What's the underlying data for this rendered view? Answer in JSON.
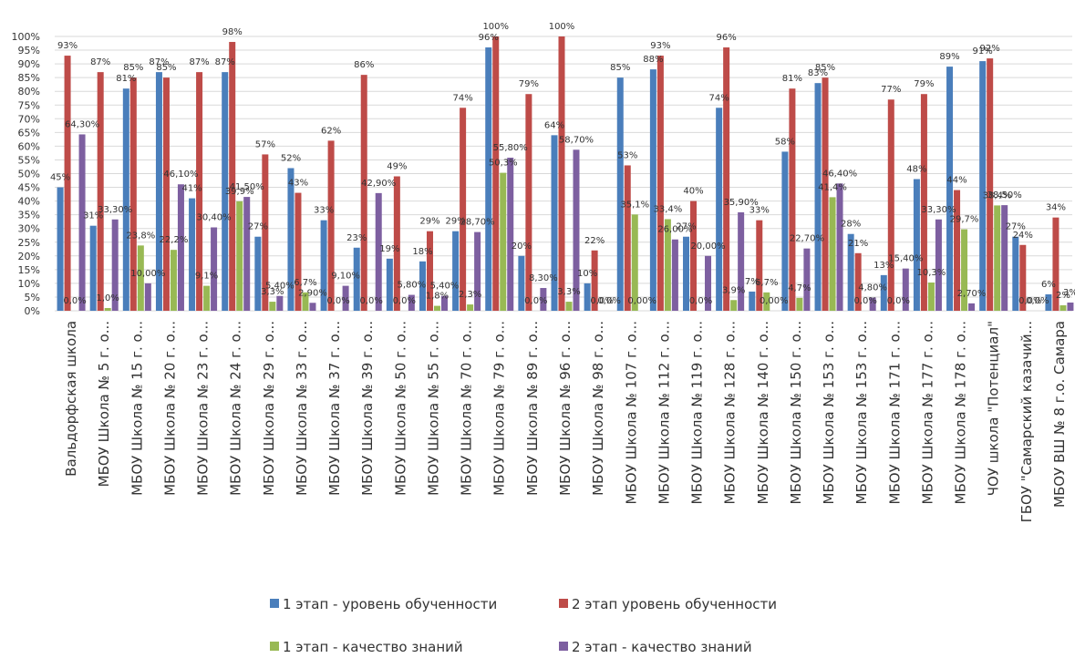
{
  "chart_data": {
    "type": "bar",
    "ylim": [
      0,
      100
    ],
    "ytick_step": 5,
    "grid": true,
    "legend_position": "bottom",
    "categories": [
      "Вальдорфская школа",
      "МБОУ Школа № 5 г. о...",
      "МБОУ Школа № 15 г. о...",
      "МБОУ Школа № 20 г. о...",
      "МБОУ Школа № 23 г. о...",
      "МБОУ Школа № 24 г. о...",
      "МБОУ Школа № 29 г. о...",
      "МБОУ Школа № 33 г. о...",
      "МБОУ Школа № 37 г. о...",
      "МБОУ Школа № 39 г. о...",
      "МБОУ Школа № 50 г. о...",
      "МБОУ Школа № 55 г. о...",
      "МБОУ Школа № 70 г. о...",
      "МБОУ Школа № 79 г. о...",
      "МБОУ Школа № 89 г. о...",
      "МБОУ Школа № 96 г. о...",
      "МБОУ Школа № 98 г. о...",
      "МБОУ Школа № 107 г. о...",
      "МБОУ Школа № 112 г. о...",
      "МБОУ Школа № 119 г. о...",
      "МБОУ Школа № 128 г. о...",
      "МБОУ Школа № 140 г. о...",
      "МБОУ Школа № 150 г. о...",
      "МБОУ Школа № 153 г. о...",
      "МБОУ Школа № 153 г. о...",
      "МБОУ Школа № 171 г. о...",
      "МБОУ Школа № 177 г. о...",
      "МБОУ Школа № 178 г. о...",
      "ЧОУ школа \"Потенциал\"",
      "ГБОУ \"Самарский казачий...",
      "МБОУ ВШ № 8 г.о. Самара"
    ],
    "series": [
      {
        "name": "1 этап - уровень обученности",
        "color": "#4a7ebb",
        "values": [
          45,
          31,
          81,
          87,
          41,
          87,
          27,
          52,
          33,
          23,
          19,
          18,
          29,
          96,
          20,
          64,
          10,
          85,
          88,
          27,
          74,
          7,
          58,
          83,
          28,
          13,
          48,
          89,
          91,
          27,
          6
        ],
        "labels": [
          "45%",
          "31%",
          "81%",
          "87%",
          "41%",
          "87%",
          "27%",
          "52%",
          "33%",
          "23%",
          "19%",
          "18%",
          "29%",
          "96%",
          "20%",
          "64%",
          "10%",
          "85%",
          "88%",
          "27%",
          "74%",
          "7%",
          "58%",
          "83%",
          "28%",
          "13%",
          "48%",
          "89%",
          "91%",
          "27%",
          "6%"
        ]
      },
      {
        "name": "2 этап уровень обученности",
        "color": "#be4b48",
        "values": [
          93,
          87,
          85,
          85,
          87,
          98,
          57,
          43,
          62,
          86,
          49,
          29,
          74,
          100,
          79,
          100,
          22,
          53,
          93,
          40,
          96,
          33,
          81,
          85,
          21,
          77,
          79,
          44,
          92,
          24,
          34
        ],
        "labels": [
          "93%",
          "87%",
          "85%",
          "85%",
          "87%",
          "98%",
          "57%",
          "43%",
          "62%",
          "86%",
          "49%",
          "29%",
          "74%",
          "100%",
          "79%",
          "100%",
          "22%",
          "53%",
          "93%",
          "40%",
          "96%",
          "33%",
          "81%",
          "85%",
          "21%",
          "77%",
          "79%",
          "44%",
          "92%",
          "24%",
          "34%"
        ]
      },
      {
        "name": "1 этап - качество знаний",
        "color": "#98b954",
        "values": [
          0,
          1,
          23.8,
          22.2,
          9.1,
          39.9,
          3.3,
          6.7,
          0,
          0,
          0,
          1.8,
          2.3,
          50.3,
          0,
          3.3,
          0,
          35.1,
          33.4,
          0,
          3.9,
          6.7,
          4.7,
          41.4,
          0,
          0,
          10.3,
          29.7,
          38.4,
          0,
          2
        ],
        "labels": [
          "0,0%",
          "1,0%",
          "23,8%",
          "22,2%",
          "9,1%",
          "39,9%",
          "3,3%",
          "6,7%",
          "0,0%",
          "0,0%",
          "0,0%",
          "1,8%",
          "2,3%",
          "50,3%",
          "0,0%",
          "3,3%",
          "0,0%",
          "35,1%",
          "33,4%",
          "0,0%",
          "3,9%",
          "6,7%",
          "4,7%",
          "41,4%",
          "0,0%",
          "0,0%",
          "10,3%",
          "29,7%",
          "38,4%",
          "0,0%",
          "2%"
        ]
      },
      {
        "name": "2 этап - качество знаний",
        "color": "#7d5fa0",
        "values": [
          64.3,
          33.3,
          10,
          46.1,
          30.4,
          41.5,
          5.4,
          2.9,
          9.1,
          42.9,
          5.8,
          5.4,
          28.7,
          55.8,
          8.3,
          58.7,
          0,
          0,
          26,
          20,
          35.9,
          0,
          22.7,
          46.4,
          4.8,
          15.4,
          33.3,
          2.7,
          38.5,
          0,
          3
        ],
        "labels": [
          "64,30%",
          "33,30%",
          "10,00%",
          "46,10%",
          "30,40%",
          "41,50%",
          "5,40%",
          "2,90%",
          "9,10%",
          "42,90%",
          "5,80%",
          "5,40%",
          "28,70%",
          "55,80%",
          "8,30%",
          "58,70%",
          "0,0%",
          "0,00%",
          "26,00%",
          "20,00%",
          "35,90%",
          "0,00%",
          "22,70%",
          "46,40%",
          "4,80%",
          "15,40%",
          "33,30%",
          "2,70%",
          "38,50%",
          "0,0%",
          "3%"
        ]
      }
    ]
  }
}
